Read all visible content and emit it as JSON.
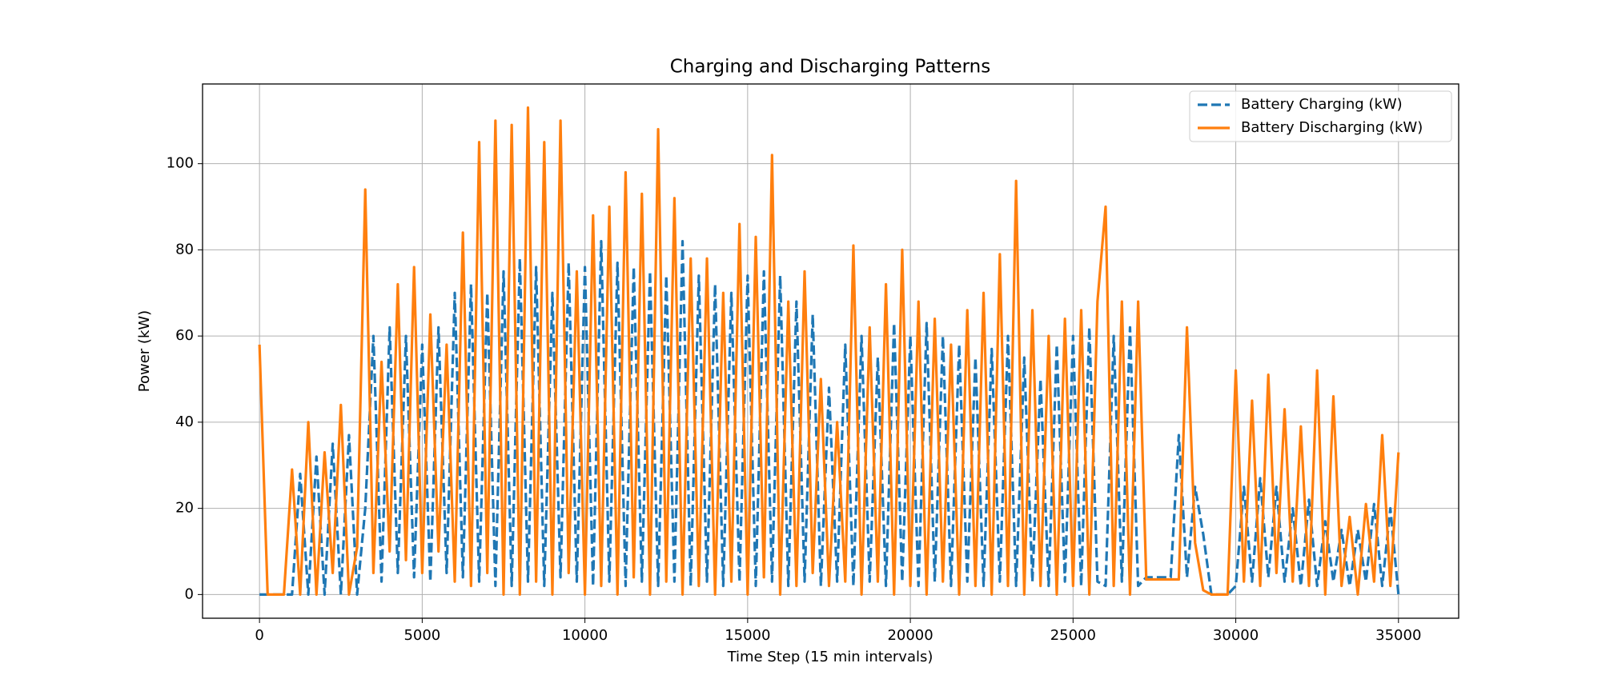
{
  "chart_data": {
    "type": "line",
    "title": "Charging and Discharging Patterns",
    "x_label": "Time Step (15 min intervals)",
    "y_label": "Power (kW)",
    "x": [
      0,
      250,
      500,
      750,
      1000,
      1250,
      1500,
      1750,
      2000,
      2250,
      2500,
      2750,
      3000,
      3250,
      3500,
      3750,
      4000,
      4250,
      4500,
      4750,
      5000,
      5250,
      5500,
      5750,
      6000,
      6250,
      6500,
      6750,
      7000,
      7250,
      7500,
      7750,
      8000,
      8250,
      8500,
      8750,
      9000,
      9250,
      9500,
      9750,
      10000,
      10250,
      10500,
      10750,
      11000,
      11250,
      11500,
      11750,
      12000,
      12250,
      12500,
      12750,
      13000,
      13250,
      13500,
      13750,
      14000,
      14250,
      14500,
      14750,
      15000,
      15250,
      15500,
      15750,
      16000,
      16250,
      16500,
      16750,
      17000,
      17250,
      17500,
      17750,
      18000,
      18250,
      18500,
      18750,
      19000,
      19250,
      19500,
      19750,
      20000,
      20250,
      20500,
      20750,
      21000,
      21250,
      21500,
      21750,
      22000,
      22250,
      22500,
      22750,
      23000,
      23250,
      23500,
      23750,
      24000,
      24250,
      24500,
      24750,
      25000,
      25250,
      25500,
      25750,
      26000,
      26250,
      26500,
      26750,
      27000,
      27250,
      27500,
      27750,
      28000,
      28250,
      28500,
      28750,
      29000,
      29250,
      29500,
      29750,
      30000,
      30250,
      30500,
      30750,
      31000,
      31250,
      31500,
      31750,
      32000,
      32250,
      32500,
      32750,
      33000,
      33250,
      33500,
      33750,
      34000,
      34250,
      34500,
      34750,
      35000
    ],
    "series": [
      {
        "name": "Battery Charging (kW)",
        "color": "#1f77b4",
        "dashed": true,
        "values": [
          0,
          0,
          0,
          0,
          0,
          28,
          0,
          32,
          0,
          35,
          0,
          37,
          0,
          20,
          60,
          3,
          62,
          5,
          60,
          4,
          58,
          3,
          62,
          5,
          70,
          4,
          72,
          3,
          70,
          2,
          75,
          2,
          78,
          3,
          76,
          2,
          70,
          4,
          77,
          3,
          76,
          2,
          82,
          3,
          77,
          2,
          76,
          3,
          75,
          2,
          74,
          3,
          82,
          2,
          74,
          3,
          72,
          2,
          70,
          3,
          74,
          2,
          75,
          3,
          74,
          2,
          68,
          3,
          65,
          2,
          48,
          3,
          58,
          2,
          60,
          3,
          55,
          2,
          63,
          3,
          60,
          2,
          63,
          3,
          60,
          2,
          58,
          3,
          55,
          2,
          57,
          3,
          60,
          2,
          55,
          3,
          50,
          2,
          58,
          3,
          60,
          2,
          62,
          3,
          2,
          60,
          3,
          62,
          2,
          4,
          4,
          4,
          4,
          37,
          4,
          25,
          14,
          0,
          0,
          0,
          2,
          25,
          3,
          27,
          4,
          25,
          3,
          20,
          2,
          22,
          2,
          17,
          3,
          15,
          2,
          15,
          3,
          21,
          2,
          20,
          0
        ]
      },
      {
        "name": "Battery Discharging (kW)",
        "color": "#ff7f0e",
        "dashed": false,
        "values": [
          58,
          0,
          0,
          0,
          29,
          0,
          40,
          0,
          33,
          5,
          44,
          0,
          11,
          94,
          5,
          54,
          10,
          72,
          8,
          76,
          5,
          65,
          10,
          58,
          3,
          84,
          2,
          105,
          5,
          110,
          0,
          109,
          0,
          113,
          3,
          105,
          0,
          110,
          5,
          75,
          0,
          88,
          2,
          90,
          0,
          98,
          4,
          93,
          0,
          108,
          3,
          92,
          0,
          78,
          2,
          78,
          0,
          70,
          3,
          86,
          0,
          83,
          4,
          102,
          0,
          68,
          2,
          75,
          5,
          50,
          2,
          40,
          3,
          81,
          0,
          62,
          3,
          72,
          0,
          80,
          2,
          68,
          0,
          64,
          3,
          58,
          0,
          66,
          2,
          70,
          0,
          79,
          2,
          96,
          0,
          66,
          2,
          60,
          0,
          64,
          2,
          66,
          0,
          68,
          90,
          2,
          68,
          0,
          68,
          3.5,
          3.5,
          3.5,
          3.5,
          3.5,
          62,
          12,
          1,
          0,
          0,
          0,
          52,
          3,
          45,
          2,
          51,
          5,
          43,
          3,
          39,
          2,
          52,
          0,
          46,
          2,
          18,
          0,
          21,
          3,
          37,
          2,
          33
        ]
      }
    ],
    "xlim": [
      -1750,
      36850
    ],
    "ylim": [
      -5.5,
      118.5
    ],
    "xticks": [
      0,
      5000,
      10000,
      15000,
      20000,
      25000,
      30000,
      35000
    ],
    "yticks": [
      0,
      20,
      40,
      60,
      80,
      100
    ],
    "grid": true,
    "legend": "upper right"
  }
}
